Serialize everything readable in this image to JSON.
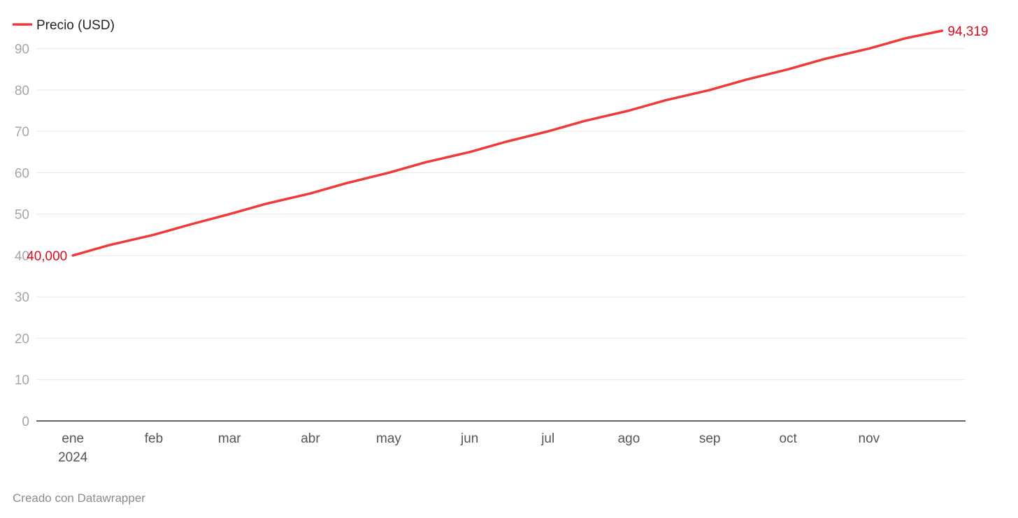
{
  "footer": {
    "credit": "Creado con Datawrapper"
  },
  "colors": {
    "line": "#f03a3a",
    "label": "#d90c1e",
    "grid": "#e9e9e9",
    "axis": "#333333"
  },
  "chart_data": {
    "type": "line",
    "title": "",
    "xlabel": "",
    "ylabel": "",
    "legend": {
      "position": "top-left",
      "entries": [
        "Precio (USD)"
      ]
    },
    "grid": true,
    "ylim": [
      0,
      95
    ],
    "yticks": [
      0,
      10,
      20,
      30,
      40,
      50,
      60,
      70,
      80,
      90
    ],
    "xticks": [
      {
        "date": "2024-01-01",
        "label": "ene",
        "sublabel": "2024"
      },
      {
        "date": "2024-02-01",
        "label": "feb"
      },
      {
        "date": "2024-03-01",
        "label": "mar"
      },
      {
        "date": "2024-04-01",
        "label": "abr"
      },
      {
        "date": "2024-05-01",
        "label": "may"
      },
      {
        "date": "2024-06-01",
        "label": "jun"
      },
      {
        "date": "2024-07-01",
        "label": "jul"
      },
      {
        "date": "2024-08-01",
        "label": "ago"
      },
      {
        "date": "2024-09-01",
        "label": "sep"
      },
      {
        "date": "2024-10-01",
        "label": "oct"
      },
      {
        "date": "2024-11-01",
        "label": "nov"
      }
    ],
    "xlim": [
      "2023-12-18",
      "2024-12-08"
    ],
    "series": [
      {
        "name": "Precio (USD)",
        "start_label": "40,000",
        "end_label": "94,319",
        "x": [
          "2024-01-01",
          "2024-01-15",
          "2024-02-01",
          "2024-02-15",
          "2024-03-01",
          "2024-03-15",
          "2024-04-01",
          "2024-04-15",
          "2024-05-01",
          "2024-05-15",
          "2024-06-01",
          "2024-06-15",
          "2024-07-01",
          "2024-07-15",
          "2024-08-01",
          "2024-08-15",
          "2024-09-01",
          "2024-09-15",
          "2024-10-01",
          "2024-10-15",
          "2024-11-01",
          "2024-11-15",
          "2024-11-29"
        ],
        "y": [
          40,
          42.5,
          45,
          47.5,
          50,
          52.5,
          55,
          57.5,
          60,
          62.5,
          65,
          67.5,
          70,
          72.5,
          75,
          77.5,
          80,
          82.5,
          85,
          87.5,
          90,
          92.5,
          94.319
        ]
      }
    ]
  }
}
